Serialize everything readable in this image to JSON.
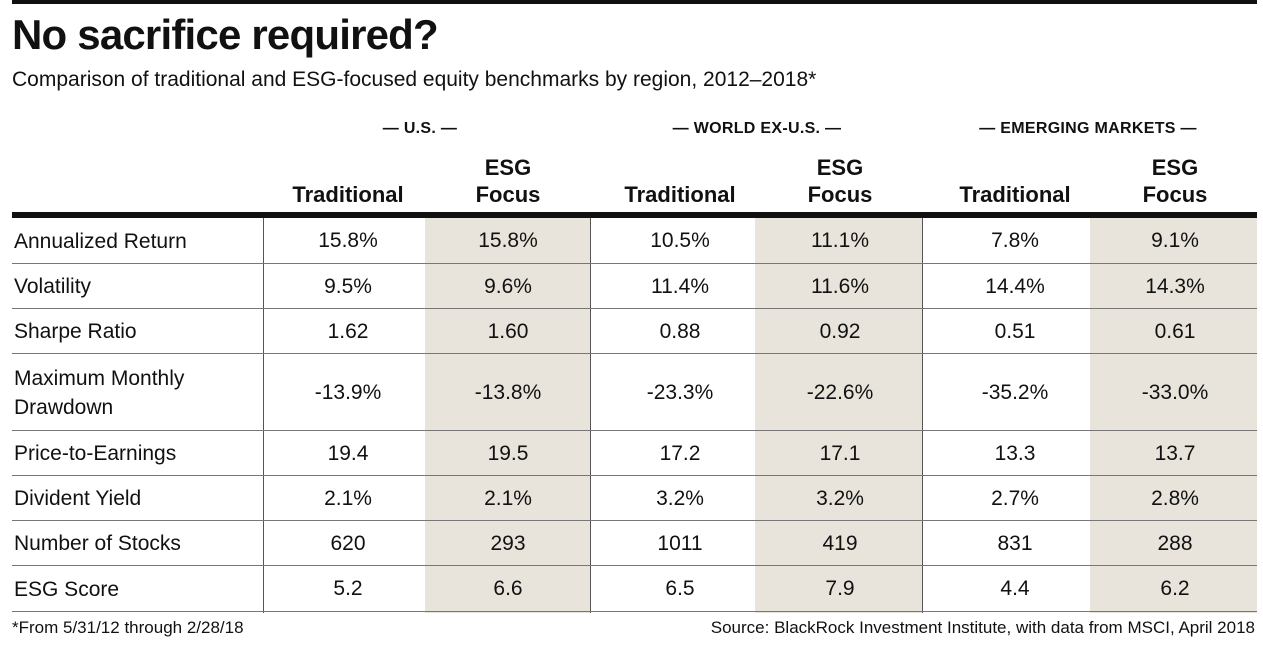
{
  "header": {
    "title": "No sacrifice required?",
    "subtitle": "Comparison of traditional and ESG-focused equity benchmarks by region, 2012–2018*"
  },
  "chart_data": {
    "type": "table",
    "groups": [
      "— U.S. —",
      "— WORLD EX-U.S. —",
      "— EMERGING MARKETS —"
    ],
    "columns": [
      "Traditional",
      "ESG\nFocus",
      "Traditional",
      "ESG\nFocus",
      "Traditional",
      "ESG\nFocus"
    ],
    "rows": [
      {
        "label": "Annualized Return",
        "values": [
          "15.8%",
          "15.8%",
          "10.5%",
          "11.1%",
          "7.8%",
          "9.1%"
        ]
      },
      {
        "label": "Volatility",
        "values": [
          "9.5%",
          "9.6%",
          "11.4%",
          "11.6%",
          "14.4%",
          "14.3%"
        ]
      },
      {
        "label": "Sharpe Ratio",
        "values": [
          "1.62",
          "1.60",
          "0.88",
          "0.92",
          "0.51",
          "0.61"
        ]
      },
      {
        "label": "Maximum Monthly\nDrawdown",
        "values": [
          "-13.9%",
          "-13.8%",
          "-23.3%",
          "-22.6%",
          "-35.2%",
          "-33.0%"
        ]
      },
      {
        "label": "Price-to-Earnings",
        "values": [
          "19.4",
          "19.5",
          "17.2",
          "17.1",
          "13.3",
          "13.7"
        ]
      },
      {
        "label": "Divident Yield",
        "values": [
          "2.1%",
          "2.1%",
          "3.2%",
          "3.2%",
          "2.7%",
          "2.8%"
        ]
      },
      {
        "label": "Number of Stocks",
        "values": [
          "620",
          "293",
          "1011",
          "419",
          "831",
          "288"
        ]
      },
      {
        "label": "ESG Score",
        "values": [
          "5.2",
          "6.6",
          "6.5",
          "7.9",
          "4.4",
          "6.2"
        ]
      }
    ]
  },
  "footer": {
    "footnote": "*From 5/31/12 through 2/28/18",
    "source": "Source: BlackRock Investment Institute, with data from MSCI, April 2018"
  },
  "colors": {
    "shade": "#e8e4db",
    "rule": "#111111"
  }
}
